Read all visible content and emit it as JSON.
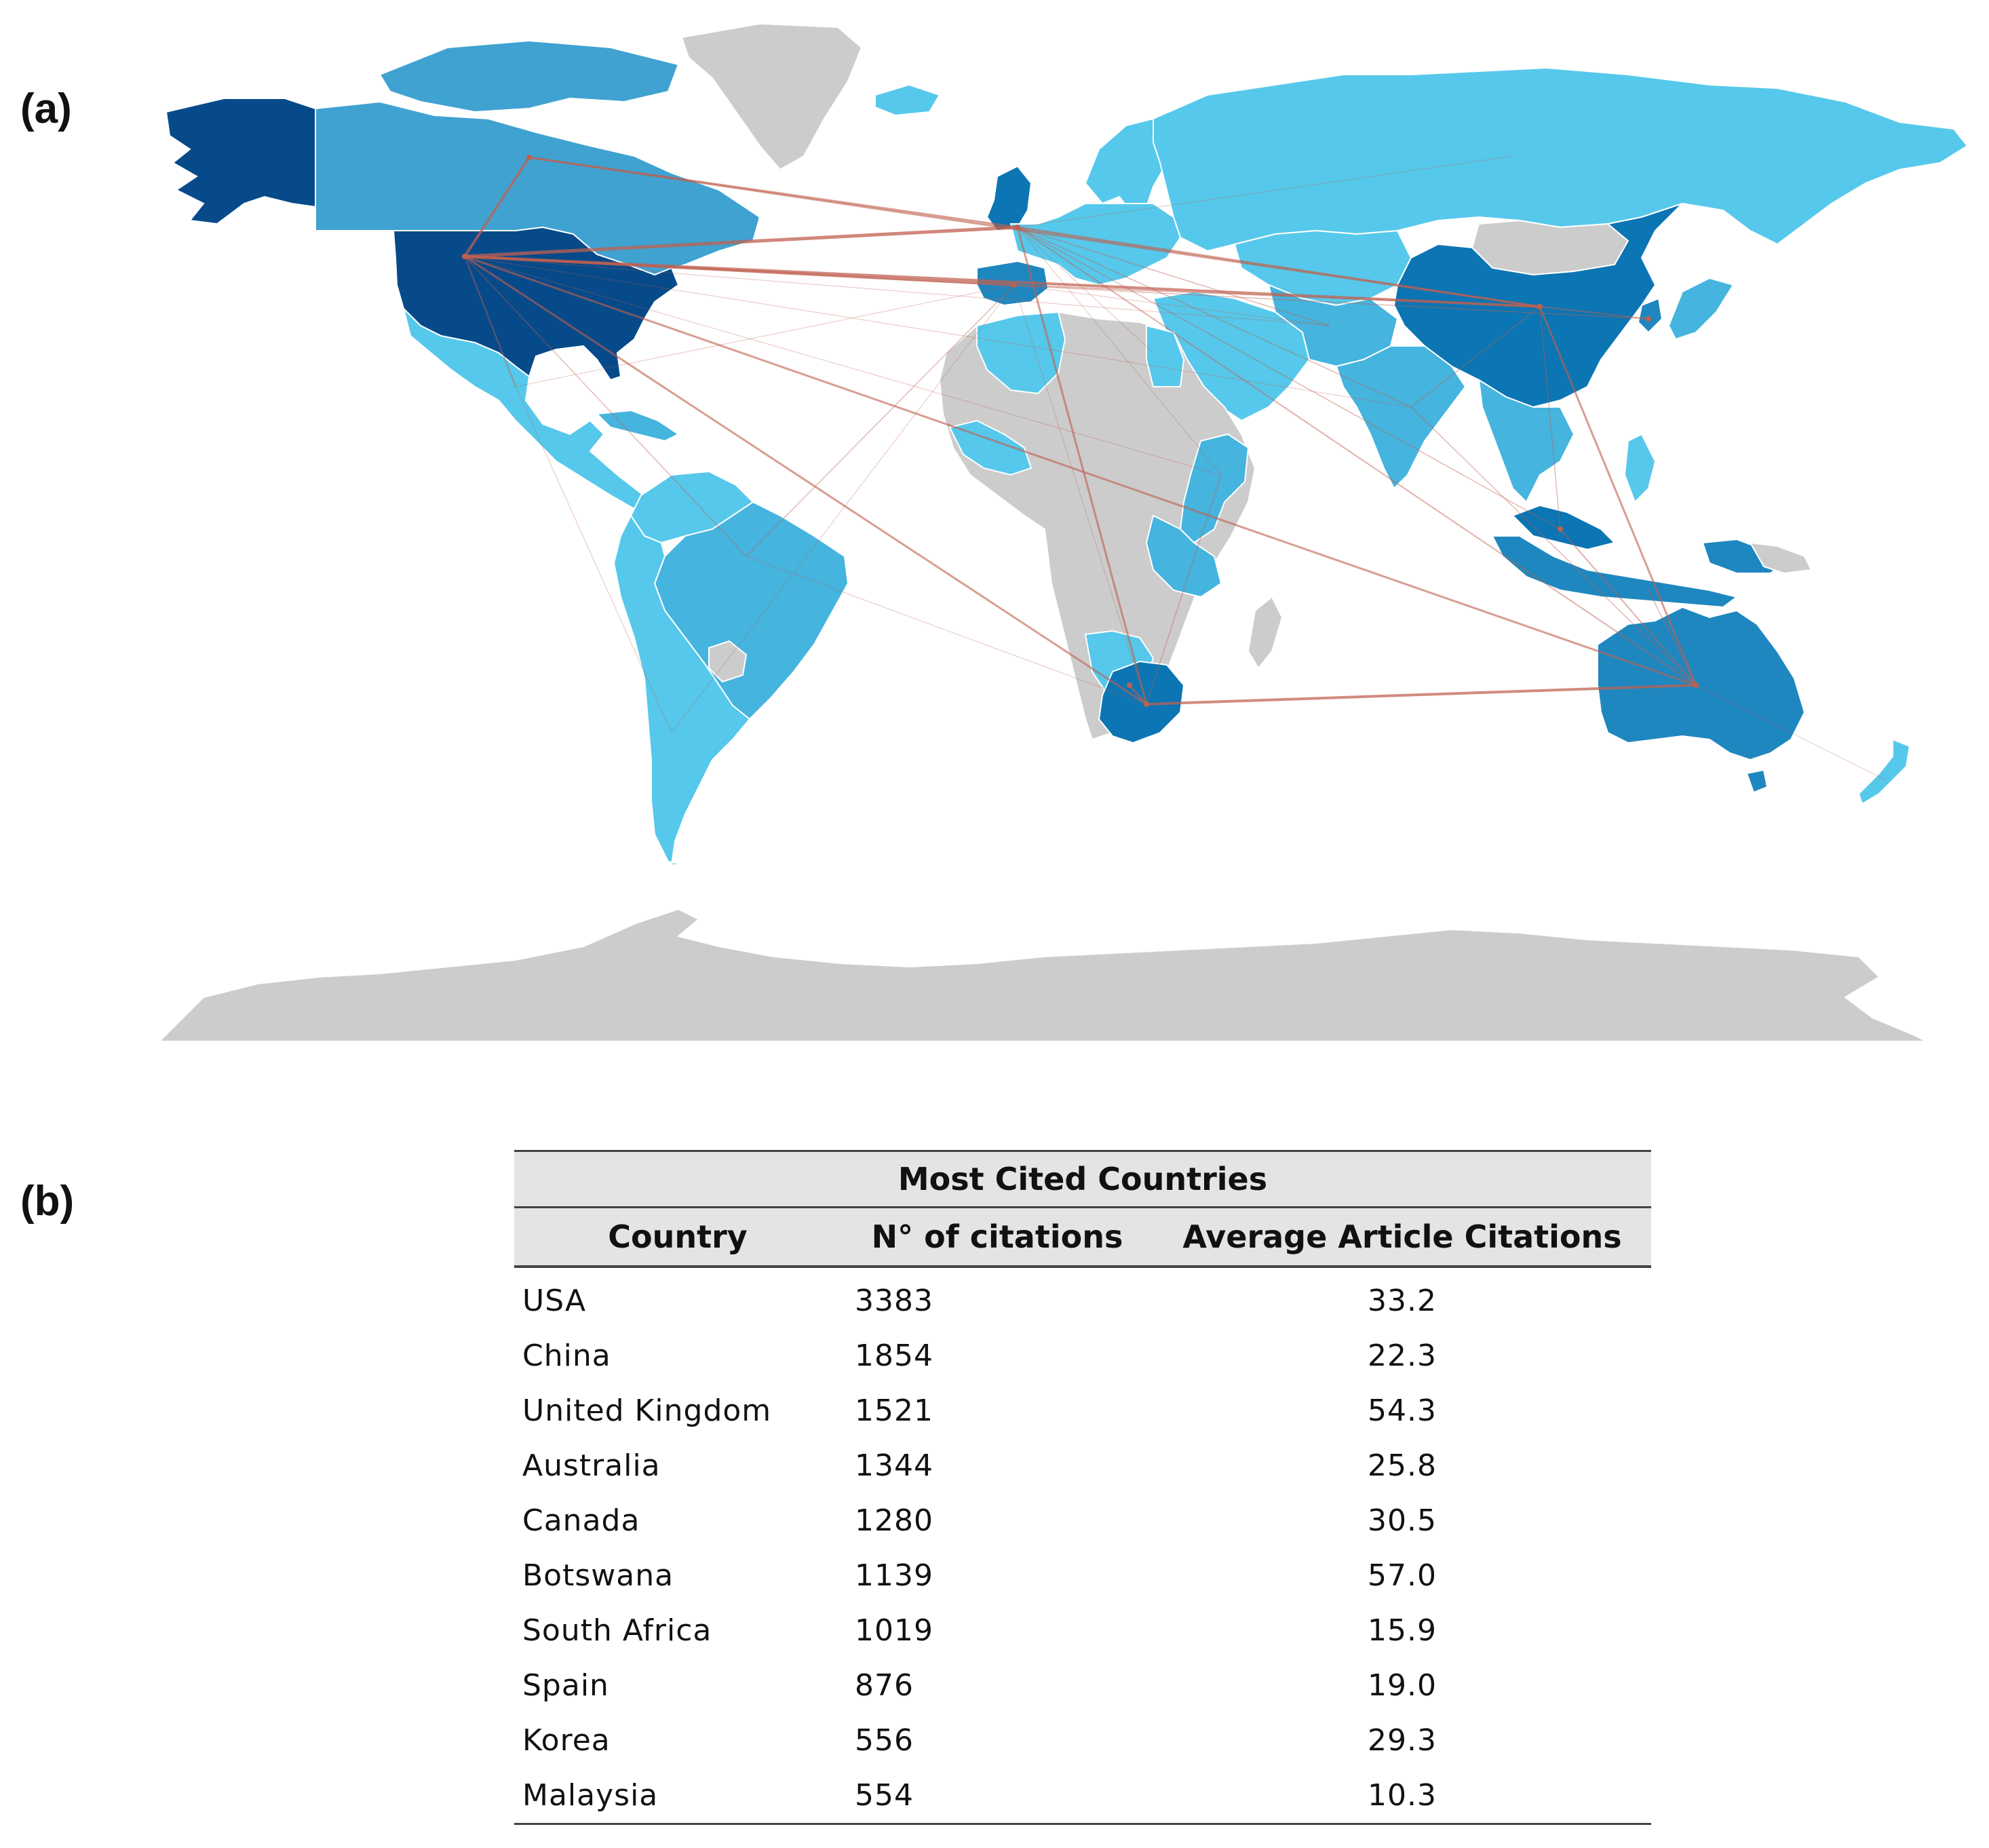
{
  "panels": {
    "a": "(a)",
    "b": "(b)"
  },
  "map": {
    "colors": {
      "no_data": "#cccccc",
      "light": "#56c8eb",
      "mid_light": "#45b4de",
      "mid": "#3fa2d1",
      "mid_dark": "#1f87bf",
      "dark": "#0c75b3",
      "darkest": "#064a8a",
      "link": "#c0604f"
    },
    "hubs": {
      "usa": "USA",
      "canada": "Canada",
      "uk": "United Kingdom",
      "spain": "Spain",
      "china": "China",
      "south_africa": "South Africa",
      "australia": "Australia",
      "korea": "Korea",
      "malaysia": "Malaysia",
      "botswana": "Botswana"
    }
  },
  "table": {
    "title": "Most Cited Countries",
    "headers": [
      "Country",
      "N° of citations",
      "Average Article Citations"
    ],
    "rows": [
      {
        "country": "USA",
        "citations": "3383",
        "average": "33.2"
      },
      {
        "country": "China",
        "citations": "1854",
        "average": "22.3"
      },
      {
        "country": "United Kingdom",
        "citations": "1521",
        "average": "54.3"
      },
      {
        "country": "Australia",
        "citations": "1344",
        "average": "25.8"
      },
      {
        "country": "Canada",
        "citations": "1280",
        "average": "30.5"
      },
      {
        "country": "Botswana",
        "citations": "1139",
        "average": "57.0"
      },
      {
        "country": "South Africa",
        "citations": "1019",
        "average": "15.9"
      },
      {
        "country": "Spain",
        "citations": "876",
        "average": "19.0"
      },
      {
        "country": "Korea",
        "citations": "556",
        "average": "29.3"
      },
      {
        "country": "Malaysia",
        "citations": "554",
        "average": "10.3"
      }
    ]
  }
}
